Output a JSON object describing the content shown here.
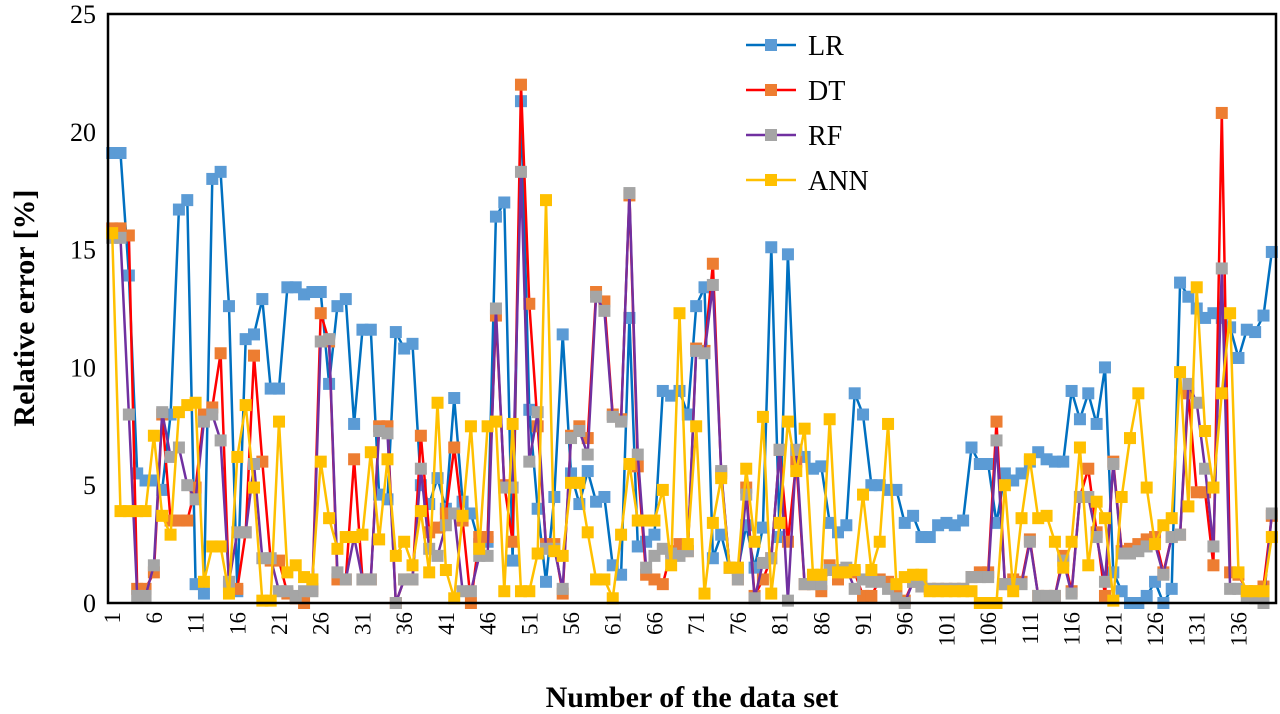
{
  "chart_data": {
    "type": "line",
    "title": "",
    "xlabel": "Number of the data set",
    "ylabel": "Relative error [%]",
    "ylim": [
      0,
      25
    ],
    "yticks": [
      0,
      5,
      10,
      15,
      20,
      25
    ],
    "xlim": [
      1,
      140
    ],
    "xticks": [
      1,
      6,
      11,
      16,
      21,
      26,
      31,
      36,
      41,
      46,
      51,
      56,
      61,
      66,
      71,
      76,
      81,
      86,
      91,
      96,
      101,
      106,
      111,
      116,
      121,
      126,
      131,
      136
    ],
    "grid": false,
    "legend_position": "top-center",
    "series": [
      {
        "name": "LR",
        "line_color": "#0070C0",
        "marker_color": "#5B9BD5",
        "marker": "square",
        "values": [
          19.1,
          19.1,
          13.9,
          5.5,
          5.2,
          5.2,
          4.8,
          8.0,
          16.7,
          17.1,
          0.8,
          0.4,
          18.0,
          18.3,
          12.6,
          0.5,
          11.2,
          11.4,
          12.9,
          9.1,
          9.1,
          13.4,
          13.4,
          13.1,
          13.2,
          13.2,
          9.3,
          12.6,
          12.9,
          7.6,
          11.6,
          11.6,
          4.6,
          4.4,
          11.5,
          10.8,
          11.0,
          5.0,
          4.2,
          5.3,
          4.0,
          8.7,
          4.3,
          3.8,
          2.5,
          2.6,
          16.4,
          17.0,
          1.8,
          21.3,
          8.2,
          4.0,
          0.9,
          4.5,
          11.4,
          5.5,
          4.2,
          5.6,
          4.3,
          4.5,
          1.6,
          1.2,
          12.1,
          2.4,
          2.6,
          2.9,
          9.0,
          8.8,
          9.0,
          8.0,
          12.6,
          13.4,
          1.9,
          2.9,
          1.5,
          1.4,
          3.3,
          1.5,
          3.2,
          15.1,
          2.8,
          14.8,
          6.5,
          6.2,
          5.7,
          5.8,
          3.4,
          3.0,
          3.3,
          8.9,
          8.0,
          5.0,
          5.0,
          4.8,
          4.8,
          3.4,
          3.7,
          2.8,
          2.8,
          3.3,
          3.4,
          3.3,
          3.5,
          6.6,
          5.9,
          5.9,
          3.4,
          5.5,
          5.2,
          5.5,
          6.0,
          6.4,
          6.1,
          6.0,
          6.0,
          9.0,
          7.8,
          8.9,
          7.6,
          10.0,
          1.3,
          0.5,
          0.0,
          0.0,
          0.3,
          0.9,
          0.0,
          0.6,
          13.6,
          13.0,
          12.5,
          12.1,
          12.3,
          12.1,
          11.7,
          10.4,
          11.6,
          11.5,
          12.2,
          14.9
        ]
      },
      {
        "name": "DT",
        "line_color": "#FF0000",
        "marker_color": "#ED7D31",
        "marker": "square",
        "values": [
          15.9,
          15.9,
          15.6,
          0.6,
          0.6,
          1.3,
          8.0,
          3.5,
          3.5,
          3.5,
          4.9,
          8.0,
          8.3,
          10.6,
          0.7,
          0.6,
          3.0,
          10.5,
          6.0,
          1.8,
          1.8,
          0.4,
          0.2,
          0.0,
          0.6,
          12.3,
          11.1,
          1.0,
          1.0,
          6.1,
          1.0,
          1.0,
          7.5,
          7.5,
          0.0,
          1.0,
          1.0,
          7.1,
          3.0,
          3.2,
          3.8,
          6.6,
          3.5,
          0.0,
          2.8,
          2.8,
          12.2,
          5.0,
          2.6,
          22.0,
          12.7,
          7.5,
          2.5,
          2.5,
          0.4,
          7.1,
          7.5,
          7.0,
          13.2,
          12.8,
          8.0,
          7.8,
          17.3,
          5.8,
          1.2,
          1.0,
          0.8,
          2.2,
          2.5,
          2.2,
          10.8,
          10.7,
          14.4,
          5.5,
          1.5,
          1.0,
          4.9,
          0.3,
          1.0,
          1.9,
          6.5,
          2.6,
          6.0,
          0.8,
          0.8,
          0.5,
          1.6,
          1.0,
          1.3,
          1.3,
          0.3,
          0.3,
          1.0,
          0.9,
          0.5,
          0.1,
          0.9,
          0.7,
          0.6,
          0.6,
          0.6,
          0.6,
          0.6,
          1.1,
          1.3,
          1.3,
          7.7,
          0.8,
          1.0,
          0.9,
          2.7,
          0.3,
          0.3,
          0.3,
          2.0,
          0.5,
          4.5,
          5.7,
          3.0,
          0.3,
          6.0,
          2.2,
          2.3,
          2.5,
          2.7,
          2.8,
          1.3,
          2.8,
          2.9,
          8.9,
          4.7,
          4.7,
          1.6,
          20.8,
          1.3,
          1.2,
          0.5,
          0.5,
          0.7,
          3.7
        ]
      },
      {
        "name": "RF",
        "line_color": "#7030A0",
        "marker_color": "#A5A5A5",
        "marker": "square",
        "values": [
          15.5,
          15.5,
          8.0,
          0.3,
          0.3,
          1.6,
          8.1,
          6.2,
          6.6,
          5.0,
          4.4,
          7.7,
          8.0,
          6.9,
          0.9,
          3.0,
          3.0,
          5.9,
          1.9,
          1.9,
          0.5,
          0.5,
          0.3,
          0.5,
          0.5,
          11.1,
          11.2,
          1.3,
          1.0,
          2.8,
          1.0,
          1.0,
          7.3,
          7.2,
          0.0,
          1.0,
          1.0,
          5.7,
          2.3,
          2.0,
          3.3,
          3.8,
          0.5,
          0.5,
          2.0,
          2.0,
          12.5,
          4.9,
          4.9,
          18.3,
          6.0,
          8.1,
          2.3,
          2.3,
          0.6,
          7.0,
          7.3,
          6.3,
          13.0,
          12.4,
          7.9,
          7.7,
          17.4,
          6.3,
          1.5,
          2.0,
          2.3,
          2.1,
          2.0,
          2.2,
          10.7,
          10.6,
          13.5,
          5.6,
          1.5,
          1.0,
          4.6,
          0.2,
          1.7,
          1.9,
          6.5,
          0.1,
          6.5,
          0.8,
          0.8,
          0.8,
          1.4,
          1.4,
          1.5,
          0.6,
          1.0,
          0.9,
          0.9,
          0.6,
          0.2,
          0.0,
          0.9,
          0.7,
          0.6,
          0.6,
          0.6,
          0.6,
          0.6,
          1.1,
          1.1,
          1.1,
          6.9,
          0.8,
          0.8,
          0.8,
          2.6,
          0.3,
          0.3,
          0.3,
          1.8,
          0.4,
          4.5,
          4.5,
          2.8,
          0.9,
          5.9,
          2.1,
          2.1,
          2.2,
          2.4,
          2.5,
          1.2,
          2.8,
          2.9,
          9.3,
          8.5,
          5.7,
          2.4,
          14.2,
          0.6,
          0.6,
          0.3,
          0.2,
          0.0,
          3.8
        ]
      },
      {
        "name": "ANN",
        "line_color": "#FFC000",
        "marker_color": "#FFC000",
        "marker": "square",
        "values": [
          15.7,
          3.9,
          3.9,
          3.9,
          3.9,
          7.1,
          3.7,
          2.9,
          8.1,
          8.4,
          8.5,
          0.9,
          2.4,
          2.4,
          0.4,
          6.2,
          8.4,
          4.9,
          0.1,
          0.1,
          7.7,
          1.3,
          1.6,
          1.1,
          1.0,
          6.0,
          3.6,
          2.3,
          2.8,
          2.8,
          2.9,
          6.4,
          2.7,
          6.1,
          2.0,
          2.6,
          1.6,
          3.9,
          1.3,
          8.5,
          1.4,
          0.2,
          3.7,
          7.5,
          2.3,
          7.5,
          7.7,
          0.5,
          7.6,
          0.5,
          0.5,
          2.1,
          17.1,
          2.2,
          2.0,
          5.1,
          5.1,
          3.0,
          1.0,
          1.0,
          0.2,
          2.9,
          5.9,
          3.5,
          3.5,
          3.5,
          4.8,
          1.6,
          12.3,
          2.5,
          7.5,
          0.4,
          3.4,
          5.3,
          1.5,
          1.5,
          5.7,
          2.6,
          7.9,
          0.4,
          3.4,
          7.7,
          5.6,
          7.4,
          1.2,
          1.2,
          7.8,
          1.3,
          1.3,
          1.4,
          4.6,
          1.4,
          2.6,
          7.6,
          0.8,
          1.1,
          1.2,
          1.2,
          0.5,
          0.5,
          0.5,
          0.5,
          0.5,
          0.5,
          0.0,
          0.0,
          0.0,
          5.0,
          0.5,
          3.6,
          6.1,
          3.6,
          3.7,
          2.6,
          1.5,
          2.6,
          6.6,
          1.6,
          4.3,
          3.6,
          0.1,
          4.5,
          7.0,
          8.9,
          4.9,
          2.5,
          3.3,
          3.6,
          9.8,
          4.1,
          13.4,
          7.3,
          4.9,
          8.9,
          12.3,
          1.3,
          0.5,
          0.5,
          0.5,
          2.8
        ]
      }
    ]
  }
}
